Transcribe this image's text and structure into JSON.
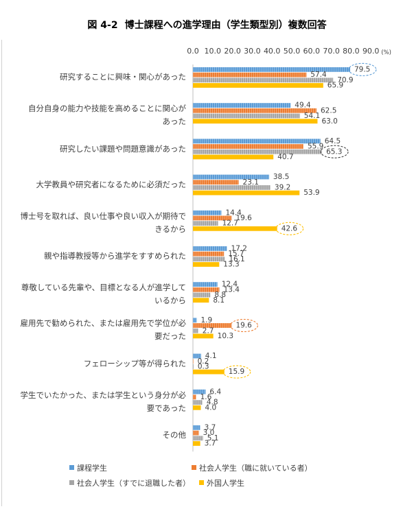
{
  "title": {
    "figure_no": "図 4-2",
    "text": "博士課程への進学理由（学生類型別）複数回答"
  },
  "chart_data": {
    "type": "bar",
    "orientation": "horizontal",
    "title": "博士課程への進学理由（学生類型別）複数回答",
    "unit": "(%)",
    "xlim": [
      0,
      90
    ],
    "ticks": [
      "0.0",
      "10.0",
      "20.0",
      "30.0",
      "40.0",
      "50.0",
      "60.0",
      "70.0",
      "80.0",
      "90.0"
    ],
    "categories": [
      "研究することに興味・関心があった",
      "自分自身の能力や技能を高めることに関心があった",
      "研究したい課題や問題意識があった",
      "大学教員や研究者になるために必須だった",
      "博士号を取れば、良い仕事や良い収入が期待できるから",
      "親や指導教授等から進学をすすめられた",
      "尊敬している先輩や、目標となる人が進学しているから",
      "雇用先で勧められた、または雇用先で学位が必要だった",
      "フェローシップ等が得られた",
      "学生でいたかった、または学生という身分が必要であった",
      "その他"
    ],
    "category_lines": [
      [
        "研究することに興味・関心があった"
      ],
      [
        "自分自身の能力や技能を高めることに関心が",
        "あった"
      ],
      [
        "研究したい課題や問題意識があった"
      ],
      [
        "大学教員や研究者になるために必須だった"
      ],
      [
        "博士号を取れば、良い仕事や良い収入が期待で",
        "きるから"
      ],
      [
        "親や指導教授等から進学をすすめられた"
      ],
      [
        "尊敬している先輩や、目標となる人が進学して",
        "いるから"
      ],
      [
        "雇用先で勧められた、または雇用先で学位が必",
        "要だった"
      ],
      [
        "フェローシップ等が得られた"
      ],
      [
        "学生でいたかった、または学生という身分が必",
        "要であった"
      ],
      [
        "その他"
      ]
    ],
    "series": [
      {
        "name": "課程学生",
        "color": "#5b9bd5",
        "values": [
          79.5,
          49.4,
          64.5,
          38.5,
          14.4,
          17.2,
          12.4,
          1.9,
          4.1,
          6.4,
          3.7
        ]
      },
      {
        "name": "社会人学生（職に就いている者）",
        "color": "#ed7d31",
        "values": [
          57.4,
          62.5,
          55.9,
          23.1,
          19.6,
          15.7,
          13.4,
          19.6,
          0.2,
          1.6,
          3.0
        ]
      },
      {
        "name": "社会人学生（すでに退職した者）",
        "color": "#a5a5a5",
        "values": [
          70.9,
          54.1,
          65.3,
          39.2,
          12.7,
          16.1,
          8.8,
          2.7,
          0.3,
          4.8,
          5.1
        ]
      },
      {
        "name": "外国人学生",
        "color": "#ffc000",
        "values": [
          65.9,
          63.0,
          40.7,
          53.9,
          42.6,
          13.3,
          8.1,
          10.3,
          15.9,
          4.0,
          3.7
        ]
      }
    ],
    "highlights": [
      {
        "category": 0,
        "series": 0,
        "color": "#5b9bd5"
      },
      {
        "category": 2,
        "series": 2,
        "color": "#404040"
      },
      {
        "category": 4,
        "series": 3,
        "color": "#ffc000"
      },
      {
        "category": 7,
        "series": 1,
        "color": "#ed7d31"
      },
      {
        "category": 8,
        "series": 3,
        "color": "#ffc000"
      }
    ],
    "legend_position": "bottom",
    "grid": false
  }
}
